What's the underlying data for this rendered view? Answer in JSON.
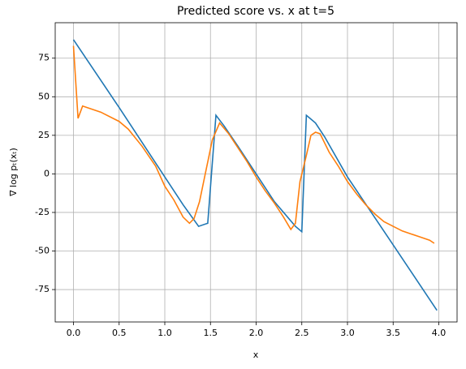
{
  "chart_data": {
    "type": "line",
    "title": "Predicted score vs. x at t=5",
    "xlabel": "x",
    "ylabel": "∇ log pₜ(xₜ)",
    "xlim": [
      -0.2,
      4.2
    ],
    "ylim": [
      -96,
      98
    ],
    "xticks": [
      {
        "value": 0,
        "label": "0.0"
      },
      {
        "value": 0.5,
        "label": "0.5"
      },
      {
        "value": 1,
        "label": "1.0"
      },
      {
        "value": 1.5,
        "label": "1.5"
      },
      {
        "value": 2,
        "label": "2.0"
      },
      {
        "value": 2.5,
        "label": "2.5"
      },
      {
        "value": 3,
        "label": "3.0"
      },
      {
        "value": 3.5,
        "label": "3.5"
      },
      {
        "value": 4,
        "label": "4.0"
      }
    ],
    "yticks": [
      -75,
      -50,
      -25,
      0,
      25,
      50,
      75
    ],
    "grid": true,
    "series": [
      {
        "color": "#1f77b4",
        "x": [
          0,
          0.5,
          1.0,
          1.2,
          1.37,
          1.47,
          1.56,
          1.65,
          1.8,
          2.0,
          2.2,
          2.43,
          2.5,
          2.55,
          2.65,
          2.75,
          3.0,
          3.5,
          3.98
        ],
        "values": [
          87,
          43,
          -2,
          -20,
          -34,
          -32,
          38,
          31,
          18,
          0,
          -18,
          -34,
          -37.5,
          38,
          33,
          24,
          -2,
          -46,
          -88.5
        ]
      },
      {
        "color": "#ff7f0e",
        "x": [
          0,
          0.05,
          0.1,
          0.3,
          0.5,
          0.6,
          0.75,
          0.9,
          1.0,
          1.1,
          1.2,
          1.27,
          1.32,
          1.38,
          1.45,
          1.52,
          1.6,
          1.7,
          1.8,
          1.9,
          2.0,
          2.1,
          2.2,
          2.3,
          2.38,
          2.43,
          2.48,
          2.55,
          2.6,
          2.65,
          2.7,
          2.8,
          2.9,
          3.0,
          3.1,
          3.2,
          3.3,
          3.4,
          3.5,
          3.6,
          3.7,
          3.8,
          3.9,
          3.95
        ],
        "values": [
          83,
          36,
          44,
          40,
          34,
          29,
          18,
          5,
          -8,
          -17,
          -28,
          -32,
          -29,
          -18,
          2,
          22,
          33,
          26,
          17,
          8,
          -2,
          -11,
          -19,
          -28,
          -36,
          -32,
          -5,
          12,
          25,
          27,
          26,
          14,
          5,
          -5,
          -13,
          -20,
          -26,
          -31,
          -34,
          -37,
          -39,
          -41,
          -43,
          -45
        ]
      }
    ]
  }
}
